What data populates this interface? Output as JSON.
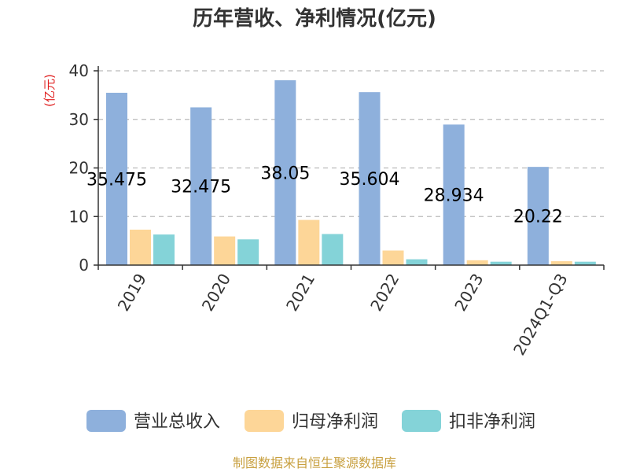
{
  "chart_data": {
    "type": "bar",
    "title": "历年营收、净利情况(亿元)",
    "ylabel": "(亿元)",
    "xlabel": "",
    "categories": [
      "2019",
      "2020",
      "2021",
      "2022",
      "2023",
      "2024Q1-Q3"
    ],
    "ylim": [
      0,
      40
    ],
    "yticks": [
      0,
      10,
      20,
      30,
      40
    ],
    "grid": true,
    "legend_position": "bottom",
    "series": [
      {
        "name": "营业总收入",
        "color": "#8eb0dc",
        "values": [
          35.475,
          32.475,
          38.05,
          35.604,
          28.934,
          20.22
        ]
      },
      {
        "name": "归母净利润",
        "color": "#fdd698",
        "values": [
          7.3,
          5.9,
          9.3,
          3.0,
          1.0,
          0.8
        ]
      },
      {
        "name": "扣非净利润",
        "color": "#84d3d8",
        "values": [
          6.3,
          5.3,
          6.4,
          1.2,
          0.7,
          0.7
        ]
      }
    ],
    "data_labels": [
      "35.475",
      "32.475",
      "38.05",
      "35.604",
      "28.934",
      "20.22"
    ]
  },
  "source_text": "制图数据来自恒生聚源数据库",
  "colors": {
    "ylabel": "#e02020",
    "source": "#c8a040",
    "axis": "#333333",
    "grid": "#bbbbbb"
  }
}
